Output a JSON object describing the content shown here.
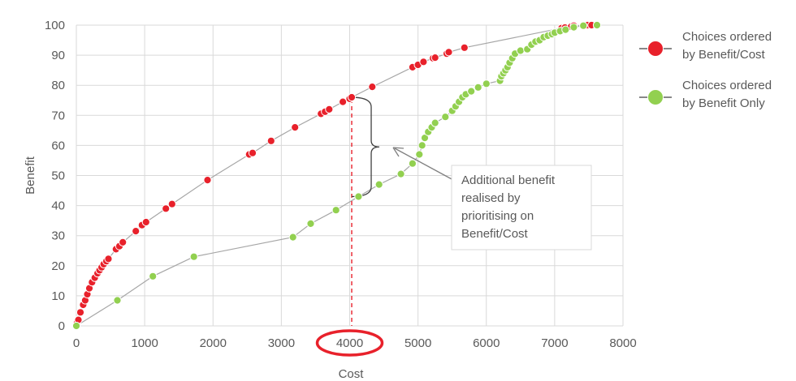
{
  "chart_data": {
    "type": "scatter",
    "title": "",
    "xlabel": "Cost",
    "ylabel": "Benefit",
    "xlim": [
      0,
      8000
    ],
    "ylim": [
      0,
      100
    ],
    "x_ticks": [
      0,
      1000,
      2000,
      3000,
      4000,
      5000,
      6000,
      7000,
      8000
    ],
    "y_ticks": [
      0,
      10,
      20,
      30,
      40,
      50,
      60,
      70,
      80,
      90,
      100
    ],
    "grid": true,
    "legend_position": "right",
    "series": [
      {
        "name_lines": [
          "Choices ordered",
          "by Benefit/Cost"
        ],
        "color": "#e8212b",
        "points": [
          [
            0,
            0
          ],
          [
            10,
            1
          ],
          [
            30,
            2
          ],
          [
            60,
            4.5
          ],
          [
            100,
            7
          ],
          [
            130,
            8.5
          ],
          [
            160,
            10.5
          ],
          [
            190,
            12.5
          ],
          [
            230,
            14.5
          ],
          [
            270,
            16
          ],
          [
            310,
            17.5
          ],
          [
            340,
            18.5
          ],
          [
            370,
            19.5
          ],
          [
            400,
            20.5
          ],
          [
            440,
            21.5
          ],
          [
            470,
            22.3
          ],
          [
            580,
            25.5
          ],
          [
            630,
            26.5
          ],
          [
            680,
            27.8
          ],
          [
            870,
            31.5
          ],
          [
            960,
            33.5
          ],
          [
            1020,
            34.5
          ],
          [
            1310,
            39
          ],
          [
            1400,
            40.5
          ],
          [
            1920,
            48.5
          ],
          [
            2530,
            57
          ],
          [
            2580,
            57.5
          ],
          [
            2850,
            61.5
          ],
          [
            3200,
            66
          ],
          [
            3580,
            70.5
          ],
          [
            3640,
            71.2
          ],
          [
            3700,
            72
          ],
          [
            3900,
            74.5
          ],
          [
            4000,
            75.5
          ],
          [
            4030,
            76
          ],
          [
            4330,
            79.5
          ],
          [
            4920,
            86
          ],
          [
            5000,
            86.8
          ],
          [
            5080,
            87.8
          ],
          [
            5220,
            89
          ],
          [
            5250,
            89.2
          ],
          [
            5420,
            90.5
          ],
          [
            5450,
            91
          ],
          [
            5680,
            92.5
          ],
          [
            7100,
            99
          ],
          [
            7150,
            99.2
          ],
          [
            7240,
            99.5
          ],
          [
            7280,
            99.8
          ],
          [
            7420,
            99.8
          ],
          [
            7480,
            100
          ],
          [
            7540,
            100
          ],
          [
            7620,
            100
          ]
        ]
      },
      {
        "name_lines": [
          "Choices ordered",
          "by Benefit Only"
        ],
        "color": "#92d050",
        "points": [
          [
            0,
            0
          ],
          [
            600,
            8.5
          ],
          [
            1120,
            16.5
          ],
          [
            1720,
            23
          ],
          [
            3170,
            29.5
          ],
          [
            3430,
            34
          ],
          [
            3800,
            38.5
          ],
          [
            4130,
            43
          ],
          [
            4430,
            47
          ],
          [
            4750,
            50.5
          ],
          [
            4920,
            54
          ],
          [
            5020,
            57
          ],
          [
            5060,
            60
          ],
          [
            5100,
            62.5
          ],
          [
            5150,
            64.5
          ],
          [
            5200,
            66
          ],
          [
            5250,
            67.5
          ],
          [
            5400,
            69.5
          ],
          [
            5500,
            71.5
          ],
          [
            5550,
            73
          ],
          [
            5600,
            74.5
          ],
          [
            5650,
            76
          ],
          [
            5700,
            77
          ],
          [
            5780,
            78
          ],
          [
            5880,
            79.3
          ],
          [
            6000,
            80.5
          ],
          [
            6200,
            81.5
          ],
          [
            6220,
            83
          ],
          [
            6250,
            84
          ],
          [
            6280,
            85
          ],
          [
            6310,
            86
          ],
          [
            6340,
            87.5
          ],
          [
            6380,
            89
          ],
          [
            6420,
            90.5
          ],
          [
            6500,
            91.5
          ],
          [
            6600,
            92
          ],
          [
            6660,
            93.5
          ],
          [
            6720,
            94.5
          ],
          [
            6780,
            95
          ],
          [
            6840,
            96
          ],
          [
            6900,
            96.5
          ],
          [
            6960,
            97
          ],
          [
            7000,
            97.5
          ],
          [
            7080,
            98
          ],
          [
            7160,
            98.5
          ],
          [
            7280,
            99.3
          ],
          [
            7420,
            99.8
          ],
          [
            7620,
            100
          ]
        ]
      }
    ],
    "annotations": {
      "vertical_line_x": 4030,
      "circled_tick": 4000,
      "bracket": {
        "x": 4030,
        "y_top": 76,
        "y_bottom": 43
      },
      "callout_lines": [
        "Additional benefit",
        "realised by",
        "prioritising on",
        "Benefit/Cost"
      ],
      "callout_color": "#595959",
      "highlight_color": "#e8212b"
    },
    "colors": {
      "axis_text": "#595959",
      "grid": "#d9d9d9",
      "connector_line": "#a6a6a6"
    }
  }
}
